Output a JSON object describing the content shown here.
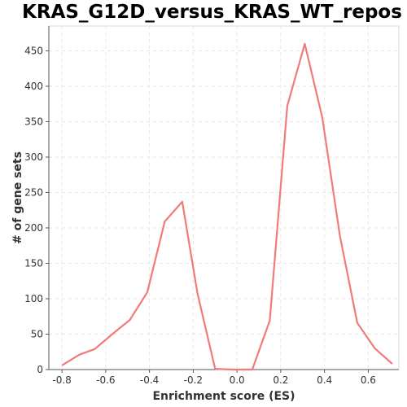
{
  "chart_data": {
    "type": "line",
    "title": "KRAS_G12D_versus_KRAS_WT_repos",
    "xlabel": "Enrichment score (ES)",
    "ylabel": "# of gene sets",
    "xlim": [
      -0.86,
      0.74
    ],
    "ylim": [
      0,
      485
    ],
    "xticks": [
      -0.8,
      -0.6,
      -0.4,
      -0.2,
      0.0,
      0.2,
      0.4,
      0.6
    ],
    "xtick_labels": [
      "-0.8",
      "-0.6",
      "-0.4",
      "-0.2",
      "0.0",
      "0.2",
      "0.4",
      "0.6"
    ],
    "yticks": [
      0,
      50,
      100,
      150,
      200,
      250,
      300,
      350,
      400,
      450
    ],
    "ytick_labels": [
      "0",
      "50",
      "100",
      "150",
      "200",
      "250",
      "300",
      "350",
      "400",
      "450"
    ],
    "grid": true,
    "line_color": "#f07b7b",
    "series": [
      {
        "x": [
          -0.8,
          -0.72,
          -0.65,
          -0.57,
          -0.49,
          -0.41,
          -0.33,
          -0.25,
          -0.18,
          -0.1,
          -0.02,
          0.07,
          0.15,
          0.23,
          0.31,
          0.39,
          0.47,
          0.55,
          0.63,
          0.71
        ],
        "y": [
          6,
          21,
          29,
          50,
          70,
          109,
          209,
          237,
          107,
          1,
          0,
          0,
          69,
          372,
          460,
          356,
          190,
          66,
          30,
          8
        ]
      }
    ]
  }
}
